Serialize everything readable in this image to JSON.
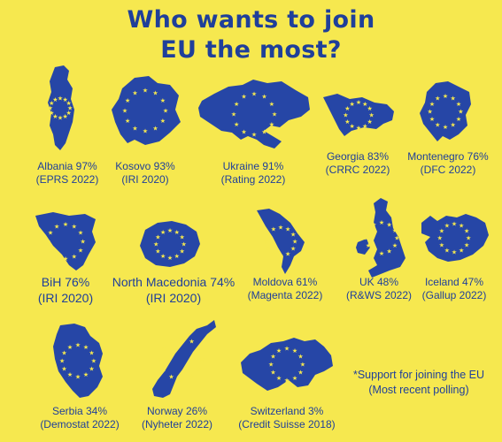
{
  "title": {
    "line1": "Who wants to join",
    "line2": "EU the most?"
  },
  "colors": {
    "background": "#f6e84f",
    "map_fill": "#2646a6",
    "star": "#f6e84f",
    "text": "#1f3f9a"
  },
  "countries": [
    {
      "name": "Albania 97%",
      "source": "(EPRS 2022)"
    },
    {
      "name": "Kosovo 93%",
      "source": "(IRI 2020)"
    },
    {
      "name": "Ukraine 91%",
      "source": "(Rating 2022)"
    },
    {
      "name": "Georgia 83%",
      "source": "(CRRC 2022)"
    },
    {
      "name": "Montenegro 76%",
      "source": "(DFC 2022)"
    },
    {
      "name": "BiH 76%",
      "source": "(IRI 2020)"
    },
    {
      "name": "North Macedonia 74%",
      "source": "(IRI 2020)"
    },
    {
      "name": "Moldova 61%",
      "source": "(Magenta 2022)"
    },
    {
      "name": "UK 48%",
      "source": "(R&WS 2022)"
    },
    {
      "name": "Iceland 47%",
      "source": "(Gallup 2022)"
    },
    {
      "name": "Serbia 34%",
      "source": "(Demostat 2022)"
    },
    {
      "name": "Norway 26%",
      "source": "(Nyheter 2022)"
    },
    {
      "name": "Switzerland 3%",
      "source": "(Credit Suisse 2018)"
    }
  ],
  "note": {
    "line1": "*Support for joining the EU",
    "line2": "(Most recent polling)"
  }
}
